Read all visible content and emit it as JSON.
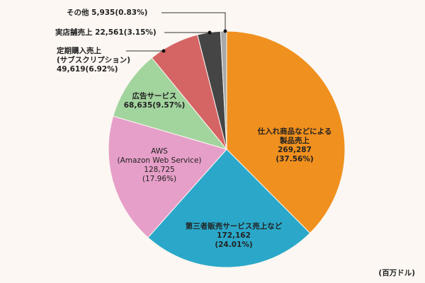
{
  "chart_data": {
    "type": "pie",
    "title": "",
    "unit": "(百万ドル)",
    "start_angle_deg": 0,
    "direction": "clockwise",
    "slices": [
      {
        "label": "仕入れ商品などによる製品売上",
        "value": 269287,
        "percent": 37.56,
        "color": "#f0901e"
      },
      {
        "label": "第三者販売サービス売上など",
        "value": 172162,
        "percent": 24.01,
        "color": "#2ba8c9"
      },
      {
        "label": "AWS (Amazon Web Service)",
        "value": 128725,
        "percent": 17.96,
        "color": "#e69fc8"
      },
      {
        "label": "広告サービス",
        "value": 68635,
        "percent": 9.57,
        "color": "#a2d49e"
      },
      {
        "label": "定期購入売上 (サブスクリプション)",
        "value": 49619,
        "percent": 6.92,
        "color": "#d56464"
      },
      {
        "label": "実店舗売上",
        "value": 22561,
        "percent": 3.15,
        "color": "#454545"
      },
      {
        "label": "その他",
        "value": 5935,
        "percent": 0.83,
        "color": "#a8a8a8"
      }
    ]
  },
  "labels": {
    "products": {
      "line1": "仕入れ商品などによる",
      "line2": "製品売上",
      "line3": "269,287",
      "line4": "(37.56%)"
    },
    "third_party": {
      "line1": "第三者販売サービス売上など",
      "line2": "172,162",
      "line3": "(24.01%)"
    },
    "aws": {
      "line1": "AWS",
      "line2": "(Amazon Web Service)",
      "line3": "128,725",
      "line4": "(17.96%)"
    },
    "ads": {
      "line1": "広告サービス",
      "line2": "68,635(9.57%)"
    },
    "subscription": {
      "line1": "定期購入売上",
      "line2": "(サブスクリプション)",
      "line3": "49,619(6.92%)"
    },
    "stores": {
      "line1": "実店舗売上 22,561(3.15%)"
    },
    "other": {
      "line1": "その他 5,935(0.83%)"
    }
  },
  "unit_label": "(百万ドル)"
}
